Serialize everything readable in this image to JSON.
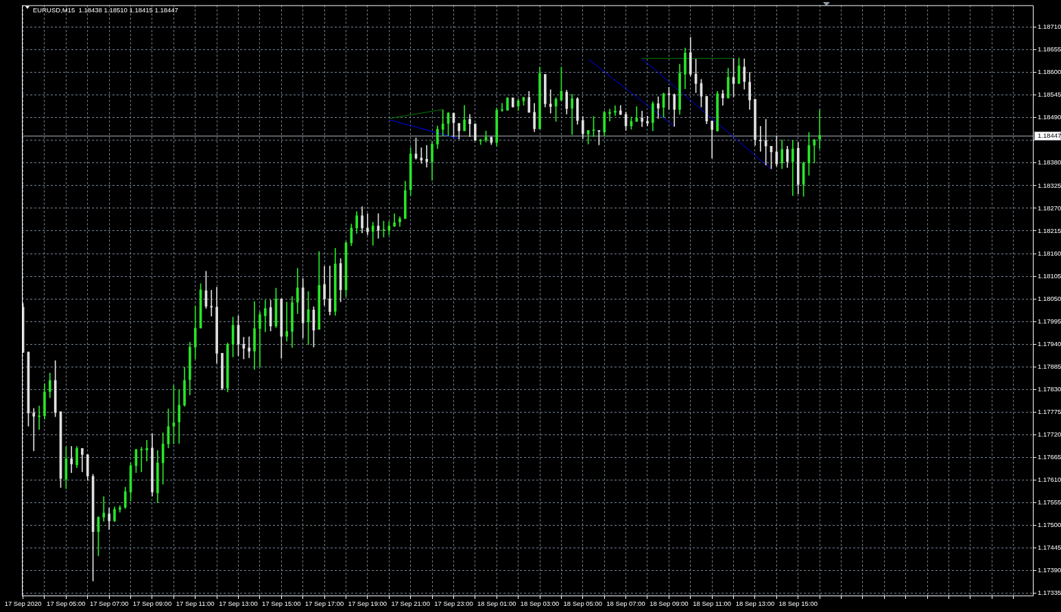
{
  "chart_data": {
    "type": "candlestick",
    "title": "EURUSD,M15  1.18438 1.18510 1.18415 1.18447",
    "x": [
      "2020-09-17T03:00",
      "2020-09-17T03:15",
      "2020-09-17T03:30",
      "2020-09-17T03:45",
      "2020-09-17T04:00",
      "2020-09-17T04:15",
      "2020-09-17T04:30",
      "2020-09-17T04:45",
      "2020-09-17T05:00",
      "2020-09-17T05:15",
      "2020-09-17T05:30",
      "2020-09-17T05:45",
      "2020-09-17T06:00",
      "2020-09-17T06:15",
      "2020-09-17T06:30",
      "2020-09-17T06:45",
      "2020-09-17T07:00",
      "2020-09-17T07:15",
      "2020-09-17T07:30",
      "2020-09-17T07:45",
      "2020-09-17T08:00",
      "2020-09-17T08:15",
      "2020-09-17T08:30",
      "2020-09-17T08:45",
      "2020-09-17T09:00",
      "2020-09-17T09:15",
      "2020-09-17T09:30",
      "2020-09-17T09:45",
      "2020-09-17T10:00",
      "2020-09-17T10:15",
      "2020-09-17T10:30",
      "2020-09-17T10:45",
      "2020-09-17T11:00",
      "2020-09-17T11:15",
      "2020-09-17T11:30",
      "2020-09-17T11:45",
      "2020-09-17T12:00",
      "2020-09-17T12:15",
      "2020-09-17T12:30",
      "2020-09-17T12:45",
      "2020-09-17T13:00",
      "2020-09-17T13:15",
      "2020-09-17T13:30",
      "2020-09-17T13:45",
      "2020-09-17T14:00",
      "2020-09-17T14:15",
      "2020-09-17T14:30",
      "2020-09-17T14:45",
      "2020-09-17T15:00",
      "2020-09-17T15:15",
      "2020-09-17T15:30",
      "2020-09-17T15:45",
      "2020-09-17T16:00",
      "2020-09-17T16:15",
      "2020-09-17T16:30",
      "2020-09-17T16:45",
      "2020-09-17T17:00",
      "2020-09-17T17:15",
      "2020-09-17T17:30",
      "2020-09-17T17:45",
      "2020-09-17T18:00",
      "2020-09-17T18:15",
      "2020-09-17T18:30",
      "2020-09-17T18:45",
      "2020-09-17T19:00",
      "2020-09-17T19:15",
      "2020-09-17T19:30",
      "2020-09-17T19:45",
      "2020-09-17T20:00",
      "2020-09-17T20:15",
      "2020-09-17T20:30",
      "2020-09-17T20:45",
      "2020-09-17T21:00",
      "2020-09-17T21:15",
      "2020-09-17T21:30",
      "2020-09-17T21:45",
      "2020-09-17T22:00",
      "2020-09-17T22:15",
      "2020-09-17T22:30",
      "2020-09-17T22:45",
      "2020-09-17T23:00",
      "2020-09-17T23:15",
      "2020-09-17T23:30",
      "2020-09-17T23:45",
      "2020-09-18T00:00",
      "2020-09-18T00:15",
      "2020-09-18T00:30",
      "2020-09-18T00:45",
      "2020-09-18T01:00",
      "2020-09-18T01:15",
      "2020-09-18T01:30",
      "2020-09-18T01:45",
      "2020-09-18T02:00",
      "2020-09-18T02:15",
      "2020-09-18T02:30",
      "2020-09-18T02:45",
      "2020-09-18T03:00",
      "2020-09-18T03:15",
      "2020-09-18T03:30",
      "2020-09-18T03:45",
      "2020-09-18T04:00",
      "2020-09-18T04:15",
      "2020-09-18T04:30",
      "2020-09-18T04:45",
      "2020-09-18T05:00",
      "2020-09-18T05:15",
      "2020-09-18T05:30",
      "2020-09-18T05:45",
      "2020-09-18T06:00",
      "2020-09-18T06:15",
      "2020-09-18T06:30",
      "2020-09-18T06:45",
      "2020-09-18T07:00",
      "2020-09-18T07:15",
      "2020-09-18T07:30",
      "2020-09-18T07:45",
      "2020-09-18T08:00",
      "2020-09-18T08:15",
      "2020-09-18T08:30",
      "2020-09-18T08:45",
      "2020-09-18T09:00",
      "2020-09-18T09:15",
      "2020-09-18T09:30",
      "2020-09-18T09:45",
      "2020-09-18T10:00",
      "2020-09-18T10:15",
      "2020-09-18T10:30",
      "2020-09-18T10:45",
      "2020-09-18T11:00",
      "2020-09-18T11:15",
      "2020-09-18T11:30",
      "2020-09-18T11:45",
      "2020-09-18T12:00",
      "2020-09-18T12:15",
      "2020-09-18T12:30",
      "2020-09-18T12:45",
      "2020-09-18T13:00",
      "2020-09-18T13:15",
      "2020-09-18T13:30",
      "2020-09-18T13:45",
      "2020-09-18T14:00",
      "2020-09-18T14:15",
      "2020-09-18T14:30",
      "2020-09-18T14:45",
      "2020-09-18T15:00",
      "2020-09-18T15:15",
      "2020-09-18T15:30",
      "2020-09-18T15:45",
      "2020-09-18T16:00"
    ],
    "ohlc": [
      [
        1.1803,
        1.18039,
        1.1792,
        1.1792
      ],
      [
        1.17921,
        1.17921,
        1.17741,
        1.17773
      ],
      [
        1.17773,
        1.17784,
        1.17681,
        1.17765
      ],
      [
        1.17764,
        1.1779,
        1.17733,
        1.17766
      ],
      [
        1.17766,
        1.17844,
        1.17758,
        1.17824
      ],
      [
        1.17825,
        1.1787,
        1.1781,
        1.17852
      ],
      [
        1.17852,
        1.179,
        1.17764,
        1.17774
      ],
      [
        1.17776,
        1.17776,
        1.17592,
        1.17614
      ],
      [
        1.17612,
        1.17691,
        1.17589,
        1.17662
      ],
      [
        1.17662,
        1.17692,
        1.17628,
        1.17649
      ],
      [
        1.17647,
        1.17692,
        1.1764,
        1.17687
      ],
      [
        1.17687,
        1.17687,
        1.1763,
        1.17672
      ],
      [
        1.17672,
        1.17672,
        1.17609,
        1.1762
      ],
      [
        1.17619,
        1.17624,
        1.17365,
        1.17485
      ],
      [
        1.17485,
        1.17521,
        1.17426,
        1.1752
      ],
      [
        1.1752,
        1.1757,
        1.1751,
        1.1753
      ],
      [
        1.17528,
        1.17543,
        1.1749,
        1.17511
      ],
      [
        1.17511,
        1.17545,
        1.17509,
        1.17539
      ],
      [
        1.17539,
        1.17548,
        1.17532,
        1.17543
      ],
      [
        1.17544,
        1.17593,
        1.17541,
        1.17582
      ],
      [
        1.17581,
        1.17652,
        1.17559,
        1.17645
      ],
      [
        1.17645,
        1.17685,
        1.17628,
        1.17684
      ],
      [
        1.17683,
        1.1769,
        1.1763,
        1.17683
      ],
      [
        1.17683,
        1.17707,
        1.17656,
        1.17687
      ],
      [
        1.17688,
        1.17723,
        1.17571,
        1.17581
      ],
      [
        1.17579,
        1.17682,
        1.17555,
        1.17652
      ],
      [
        1.17652,
        1.17725,
        1.176,
        1.17698
      ],
      [
        1.17698,
        1.17783,
        1.17688,
        1.1774
      ],
      [
        1.17741,
        1.1784,
        1.17698,
        1.17749
      ],
      [
        1.17751,
        1.17829,
        1.17699,
        1.17792
      ],
      [
        1.17792,
        1.17884,
        1.17789,
        1.17852
      ],
      [
        1.17854,
        1.17945,
        1.17817,
        1.17933
      ],
      [
        1.17933,
        1.18033,
        1.17904,
        1.17979
      ],
      [
        1.17979,
        1.18087,
        1.17979,
        1.18072
      ],
      [
        1.1807,
        1.18117,
        1.18027,
        1.18032
      ],
      [
        1.18032,
        1.18071,
        1.18008,
        1.1803
      ],
      [
        1.1803,
        1.18078,
        1.17894,
        1.17918
      ],
      [
        1.17918,
        1.17918,
        1.17829,
        1.17833
      ],
      [
        1.17833,
        1.17943,
        1.17824,
        1.1794
      ],
      [
        1.1794,
        1.18006,
        1.17909,
        1.17986
      ],
      [
        1.17986,
        1.18009,
        1.17912,
        1.1794
      ],
      [
        1.1794,
        1.17957,
        1.17904,
        1.1793
      ],
      [
        1.17931,
        1.17958,
        1.17907,
        1.17923
      ],
      [
        1.17923,
        1.18044,
        1.17879,
        1.17978
      ],
      [
        1.17978,
        1.18019,
        1.17885,
        1.18012
      ],
      [
        1.18009,
        1.18047,
        1.1797,
        1.18027
      ],
      [
        1.18029,
        1.18047,
        1.17972,
        1.17984
      ],
      [
        1.17984,
        1.18076,
        1.1798,
        1.1805
      ],
      [
        1.1805,
        1.1805,
        1.17906,
        1.17959
      ],
      [
        1.17959,
        1.18042,
        1.17947,
        1.17971
      ],
      [
        1.17971,
        1.18056,
        1.17932,
        1.18041
      ],
      [
        1.18042,
        1.18124,
        1.18014,
        1.18077
      ],
      [
        1.18077,
        1.18099,
        1.17955,
        1.17992
      ],
      [
        1.17994,
        1.18068,
        1.17939,
        1.18024
      ],
      [
        1.18023,
        1.18031,
        1.17933,
        1.17974
      ],
      [
        1.17976,
        1.18165,
        1.17976,
        1.18083
      ],
      [
        1.18085,
        1.18129,
        1.18034,
        1.1805
      ],
      [
        1.1805,
        1.1813,
        1.18011,
        1.18019
      ],
      [
        1.1802,
        1.18173,
        1.1801,
        1.18135
      ],
      [
        1.18136,
        1.18148,
        1.18043,
        1.18072
      ],
      [
        1.18072,
        1.18189,
        1.18055,
        1.18186
      ],
      [
        1.18186,
        1.18232,
        1.18179,
        1.18222
      ],
      [
        1.18222,
        1.18262,
        1.18209,
        1.18252
      ],
      [
        1.18252,
        1.18274,
        1.1821,
        1.18222
      ],
      [
        1.18222,
        1.18257,
        1.18205,
        1.18213
      ],
      [
        1.18214,
        1.18236,
        1.1818,
        1.18227
      ],
      [
        1.18227,
        1.18257,
        1.18197,
        1.18217
      ],
      [
        1.18217,
        1.18239,
        1.182,
        1.18217
      ],
      [
        1.18217,
        1.18238,
        1.18205,
        1.18227
      ],
      [
        1.18227,
        1.18257,
        1.18225,
        1.18235
      ],
      [
        1.18237,
        1.1825,
        1.18226,
        1.18245
      ],
      [
        1.18245,
        1.18336,
        1.18245,
        1.18313
      ],
      [
        1.18315,
        1.18417,
        1.18301,
        1.18402
      ],
      [
        1.18402,
        1.18441,
        1.18389,
        1.18392
      ],
      [
        1.18392,
        1.18417,
        1.18379,
        1.18387
      ],
      [
        1.18389,
        1.18423,
        1.1837,
        1.18383
      ],
      [
        1.18383,
        1.18433,
        1.18338,
        1.18426
      ],
      [
        1.18426,
        1.1847,
        1.18415,
        1.18462
      ],
      [
        1.18462,
        1.18509,
        1.18447,
        1.18475
      ],
      [
        1.18476,
        1.18503,
        1.18445,
        1.18501
      ],
      [
        1.18501,
        1.18501,
        1.18444,
        1.18478
      ],
      [
        1.18476,
        1.18476,
        1.18438,
        1.18458
      ],
      [
        1.18458,
        1.1852,
        1.18458,
        1.18485
      ],
      [
        1.18486,
        1.18498,
        1.18444,
        1.18475
      ],
      [
        1.18475,
        1.18475,
        1.18435,
        1.18435
      ],
      [
        1.18434,
        1.18438,
        1.18425,
        1.18434
      ],
      [
        1.18436,
        1.18458,
        1.18431,
        1.18443
      ],
      [
        1.18443,
        1.18443,
        1.18425,
        1.1843
      ],
      [
        1.1843,
        1.18514,
        1.18421,
        1.18508
      ],
      [
        1.18508,
        1.18525,
        1.18505,
        1.18508
      ],
      [
        1.18508,
        1.18539,
        1.18508,
        1.18538
      ],
      [
        1.18538,
        1.18538,
        1.18516,
        1.18516
      ],
      [
        1.18518,
        1.18536,
        1.18507,
        1.18531
      ],
      [
        1.18531,
        1.1854,
        1.1852,
        1.18539
      ],
      [
        1.18539,
        1.18554,
        1.18503,
        1.18503
      ],
      [
        1.18503,
        1.18525,
        1.18456,
        1.18463
      ],
      [
        1.18463,
        1.18613,
        1.18463,
        1.18597
      ],
      [
        1.18595,
        1.18595,
        1.18516,
        1.18524
      ],
      [
        1.18523,
        1.18558,
        1.18501,
        1.18517
      ],
      [
        1.18518,
        1.18539,
        1.18481,
        1.18535
      ],
      [
        1.18533,
        1.18613,
        1.18531,
        1.18554
      ],
      [
        1.18552,
        1.18557,
        1.18499,
        1.18512
      ],
      [
        1.18513,
        1.18547,
        1.18449,
        1.18536
      ],
      [
        1.18536,
        1.18539,
        1.18474,
        1.18483
      ],
      [
        1.18483,
        1.18493,
        1.18439,
        1.18451
      ],
      [
        1.1845,
        1.18459,
        1.18426,
        1.18459
      ],
      [
        1.18459,
        1.18493,
        1.18444,
        1.18459
      ],
      [
        1.18459,
        1.18459,
        1.18424,
        1.18457
      ],
      [
        1.18455,
        1.18506,
        1.18445,
        1.18503
      ],
      [
        1.185,
        1.18511,
        1.18482,
        1.18503
      ],
      [
        1.18503,
        1.18519,
        1.18495,
        1.18506
      ],
      [
        1.18507,
        1.1852,
        1.18497,
        1.18498
      ],
      [
        1.18498,
        1.18504,
        1.18459,
        1.1847
      ],
      [
        1.1847,
        1.18492,
        1.18462,
        1.18481
      ],
      [
        1.18481,
        1.18517,
        1.18481,
        1.18489
      ],
      [
        1.18489,
        1.18506,
        1.18468,
        1.18481
      ],
      [
        1.18481,
        1.18494,
        1.1847,
        1.18477
      ],
      [
        1.18478,
        1.18529,
        1.18458,
        1.18524
      ],
      [
        1.18524,
        1.18541,
        1.18488,
        1.18513
      ],
      [
        1.18515,
        1.1855,
        1.18491,
        1.18548
      ],
      [
        1.18548,
        1.18564,
        1.1851,
        1.18546
      ],
      [
        1.18546,
        1.18548,
        1.18469,
        1.1851
      ],
      [
        1.1851,
        1.1862,
        1.18498,
        1.18598
      ],
      [
        1.18596,
        1.18659,
        1.1856,
        1.18647
      ],
      [
        1.18648,
        1.18685,
        1.18591,
        1.18596
      ],
      [
        1.18596,
        1.18632,
        1.18551,
        1.18573
      ],
      [
        1.18573,
        1.18583,
        1.18516,
        1.18542
      ],
      [
        1.18542,
        1.18542,
        1.18475,
        1.18482
      ],
      [
        1.18482,
        1.18482,
        1.18392,
        1.18461
      ],
      [
        1.18458,
        1.18554,
        1.18457,
        1.18548
      ],
      [
        1.18548,
        1.18557,
        1.1852,
        1.18538
      ],
      [
        1.18538,
        1.1861,
        1.18537,
        1.18588
      ],
      [
        1.18588,
        1.18634,
        1.18541,
        1.18573
      ],
      [
        1.18573,
        1.18635,
        1.18573,
        1.18616
      ],
      [
        1.18613,
        1.18633,
        1.18559,
        1.18578
      ],
      [
        1.18576,
        1.186,
        1.1851,
        1.18533
      ],
      [
        1.18535,
        1.18535,
        1.18423,
        1.18437
      ],
      [
        1.18435,
        1.18469,
        1.18408,
        1.18434
      ],
      [
        1.18434,
        1.18486,
        1.18375,
        1.18421
      ],
      [
        1.18421,
        1.18421,
        1.18366,
        1.18407
      ],
      [
        1.18407,
        1.18446,
        1.18372,
        1.18378
      ],
      [
        1.1838,
        1.18436,
        1.18366,
        1.18413
      ],
      [
        1.18413,
        1.18421,
        1.18369,
        1.18383
      ],
      [
        1.18383,
        1.18435,
        1.18301,
        1.18414
      ],
      [
        1.18416,
        1.1843,
        1.18305,
        1.18328
      ],
      [
        1.18328,
        1.18383,
        1.18299,
        1.1838
      ],
      [
        1.1838,
        1.18454,
        1.1835,
        1.18423
      ],
      [
        1.18423,
        1.18438,
        1.1838,
        1.18436
      ],
      [
        1.18438,
        1.1851,
        1.18415,
        1.18447
      ]
    ],
    "colors": [
      "#e0e0e0",
      "#e0e0e0",
      "#e0e0e0",
      "#28e628",
      "#28e628",
      "#28e628",
      "#e0e0e0",
      "#e0e0e0",
      "#28e628",
      "#e0e0e0",
      "#28e628",
      "#e0e0e0",
      "#e0e0e0",
      "#e0e0e0",
      "#28e628",
      "#28e628",
      "#e0e0e0",
      "#28e628",
      "#28e628",
      "#28e628",
      "#28e628",
      "#28e628",
      "#28e628",
      "#28e628",
      "#e0e0e0",
      "#28e628",
      "#28e628",
      "#28e628",
      "#28e628",
      "#28e628",
      "#28e628",
      "#28e628",
      "#28e628",
      "#28e628",
      "#e0e0e0",
      "#e0e0e0",
      "#e0e0e0",
      "#e0e0e0",
      "#28e628",
      "#28e628",
      "#e0e0e0",
      "#e0e0e0",
      "#e0e0e0",
      "#28e628",
      "#28e628",
      "#28e628",
      "#e0e0e0",
      "#28e628",
      "#e0e0e0",
      "#28e628",
      "#28e628",
      "#28e628",
      "#e0e0e0",
      "#28e628",
      "#e0e0e0",
      "#28e628",
      "#e0e0e0",
      "#e0e0e0",
      "#28e628",
      "#e0e0e0",
      "#28e628",
      "#28e628",
      "#28e628",
      "#e0e0e0",
      "#e0e0e0",
      "#28e628",
      "#e0e0e0",
      "#28e628",
      "#28e628",
      "#28e628",
      "#28e628",
      "#28e628",
      "#28e628",
      "#e0e0e0",
      "#e0e0e0",
      "#e0e0e0",
      "#28e628",
      "#28e628",
      "#28e628",
      "#28e628",
      "#e0e0e0",
      "#e0e0e0",
      "#28e628",
      "#e0e0e0",
      "#e0e0e0",
      "#28e628",
      "#28e628",
      "#e0e0e0",
      "#28e628",
      "#28e628",
      "#28e628",
      "#e0e0e0",
      "#28e628",
      "#28e628",
      "#e0e0e0",
      "#e0e0e0",
      "#28e628",
      "#e0e0e0",
      "#e0e0e0",
      "#28e628",
      "#28e628",
      "#e0e0e0",
      "#28e628",
      "#e0e0e0",
      "#e0e0e0",
      "#28e628",
      "#28e628",
      "#e0e0e0",
      "#28e628",
      "#28e628",
      "#28e628",
      "#e0e0e0",
      "#e0e0e0",
      "#28e628",
      "#28e628",
      "#e0e0e0",
      "#e0e0e0",
      "#28e628",
      "#e0e0e0",
      "#28e628",
      "#e0e0e0",
      "#e0e0e0",
      "#28e628",
      "#28e628",
      "#e0e0e0",
      "#e0e0e0",
      "#e0e0e0",
      "#e0e0e0",
      "#e0e0e0",
      "#28e628",
      "#e0e0e0",
      "#28e628",
      "#e0e0e0",
      "#28e628",
      "#e0e0e0",
      "#e0e0e0",
      "#e0e0e0",
      "#e0e0e0",
      "#e0e0e0",
      "#e0e0e0",
      "#e0e0e0",
      "#28e628",
      "#e0e0e0",
      "#28e628",
      "#e0e0e0",
      "#28e628",
      "#28e628",
      "#28e628",
      "#28e628"
    ],
    "series": [
      {
        "type": "line",
        "x": [
          "2020-09-17T20:00",
          "2020-09-17T23:15"
        ],
        "values": [
          1.18485,
          1.18439
        ],
        "color": "#0000ff"
      },
      {
        "type": "line",
        "x": [
          "2020-09-17T20:00",
          "2020-09-17T22:30"
        ],
        "values": [
          1.18488,
          1.1851
        ],
        "color": "#008000"
      },
      {
        "type": "line",
        "x": [
          "2020-09-18T05:15",
          "2020-09-18T09:15"
        ],
        "values": [
          1.18632,
          1.18469
        ],
        "color": "#0000ff"
      },
      {
        "type": "line",
        "x": [
          "2020-09-18T07:45",
          "2020-09-18T12:00"
        ],
        "values": [
          1.18634,
          1.18634
        ],
        "color": "#008000"
      },
      {
        "type": "line",
        "x": [
          "2020-09-18T07:45",
          "2020-09-18T13:45"
        ],
        "values": [
          1.18633,
          1.18365
        ],
        "color": "#0000ff"
      }
    ],
    "xlim": [
      "2020-09-17T02:57",
      "2020-09-19T01:56"
    ],
    "xticks": [
      {
        "value": "2020-09-17T03:00",
        "label": "17 Sep 2020"
      },
      {
        "value": "2020-09-17T04:00",
        "label": null
      },
      {
        "value": "2020-09-17T05:00",
        "label": "17 Sep 05:00"
      },
      {
        "value": "2020-09-17T06:00",
        "label": null
      },
      {
        "value": "2020-09-17T07:00",
        "label": "17 Sep 07:00"
      },
      {
        "value": "2020-09-17T08:00",
        "label": null
      },
      {
        "value": "2020-09-17T09:00",
        "label": "17 Sep 09:00"
      },
      {
        "value": "2020-09-17T10:00",
        "label": null
      },
      {
        "value": "2020-09-17T11:00",
        "label": "17 Sep 11:00"
      },
      {
        "value": "2020-09-17T12:00",
        "label": null
      },
      {
        "value": "2020-09-17T13:00",
        "label": "17 Sep 13:00"
      },
      {
        "value": "2020-09-17T14:00",
        "label": null
      },
      {
        "value": "2020-09-17T15:00",
        "label": "17 Sep 15:00"
      },
      {
        "value": "2020-09-17T16:00",
        "label": null
      },
      {
        "value": "2020-09-17T17:00",
        "label": "17 Sep 17:00"
      },
      {
        "value": "2020-09-17T18:00",
        "label": null
      },
      {
        "value": "2020-09-17T19:00",
        "label": "17 Sep 19:00"
      },
      {
        "value": "2020-09-17T20:00",
        "label": null
      },
      {
        "value": "2020-09-17T21:00",
        "label": "17 Sep 21:00"
      },
      {
        "value": "2020-09-17T22:00",
        "label": null
      },
      {
        "value": "2020-09-17T23:00",
        "label": "17 Sep 23:00"
      },
      {
        "value": "2020-09-18T00:00",
        "label": null
      },
      {
        "value": "2020-09-18T01:00",
        "label": "18 Sep 01:00"
      },
      {
        "value": "2020-09-18T02:00",
        "label": null
      },
      {
        "value": "2020-09-18T03:00",
        "label": "18 Sep 03:00"
      },
      {
        "value": "2020-09-18T04:00",
        "label": null
      },
      {
        "value": "2020-09-18T05:00",
        "label": "18 Sep 05:00"
      },
      {
        "value": "2020-09-18T06:00",
        "label": null
      },
      {
        "value": "2020-09-18T07:00",
        "label": "18 Sep 07:00"
      },
      {
        "value": "2020-09-18T08:00",
        "label": null
      },
      {
        "value": "2020-09-18T09:00",
        "label": "18 Sep 09:00"
      },
      {
        "value": "2020-09-18T10:00",
        "label": null
      },
      {
        "value": "2020-09-18T11:00",
        "label": "18 Sep 11:00"
      },
      {
        "value": "2020-09-18T12:00",
        "label": null
      },
      {
        "value": "2020-09-18T13:00",
        "label": "18 Sep 13:00"
      },
      {
        "value": "2020-09-18T14:00",
        "label": null
      },
      {
        "value": "2020-09-18T15:00",
        "label": "18 Sep 15:00"
      },
      {
        "value": "2020-09-18T16:00",
        "label": null
      },
      {
        "value": "2020-09-18T17:00",
        "label": null
      },
      {
        "value": "2020-09-18T18:00",
        "label": null
      },
      {
        "value": "2020-09-18T19:00",
        "label": null
      },
      {
        "value": "2020-09-18T20:00",
        "label": null
      },
      {
        "value": "2020-09-18T21:00",
        "label": null
      },
      {
        "value": "2020-09-18T22:00",
        "label": null
      },
      {
        "value": "2020-09-18T23:00",
        "label": null
      },
      {
        "value": "2020-09-19T00:00",
        "label": null
      },
      {
        "value": "2020-09-19T01:00",
        "label": null
      }
    ],
    "ylim": [
      1.17328,
      1.18763
    ],
    "yticks": [
      1.17335,
      {
        "value": 1.1739,
        "label": "1.17390"
      },
      1.17445,
      {
        "value": 1.175,
        "label": "1.17500"
      },
      1.17555,
      {
        "value": 1.1761,
        "label": "1.17610"
      },
      1.17665,
      {
        "value": 1.1772,
        "label": "1.17720"
      },
      1.17775,
      {
        "value": 1.1783,
        "label": "1.17830"
      },
      1.17885,
      {
        "value": 1.1794,
        "label": "1.17940"
      },
      1.17995,
      {
        "value": 1.1805,
        "label": "1.18050"
      },
      1.18105,
      {
        "value": 1.1816,
        "label": "1.18160"
      },
      1.18215,
      {
        "value": 1.1827,
        "label": "1.18270"
      },
      1.18325,
      {
        "value": 1.1838,
        "label": "1.18380"
      },
      {
        "value": 1.18435,
        "label": null
      },
      {
        "value": 1.1849,
        "label": "1.18490"
      },
      1.18545,
      {
        "value": 1.186,
        "label": "1.18600"
      },
      1.18655,
      {
        "value": 1.1871,
        "label": "1.18710"
      }
    ],
    "ref_lines": [
      {
        "axis": "y",
        "value": 1.18447,
        "label": "1.18447",
        "color": "#a8b0b8"
      }
    ],
    "grid": true
  }
}
